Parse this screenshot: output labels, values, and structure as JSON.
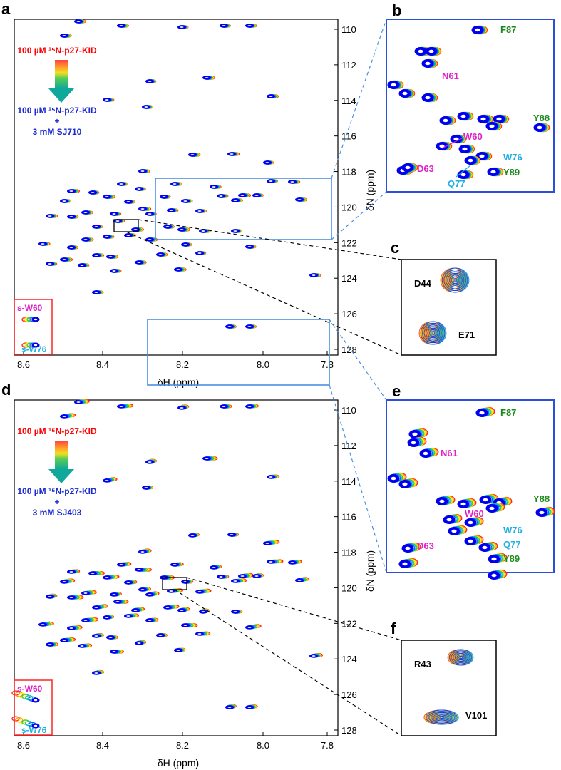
{
  "figure": {
    "top": {
      "panel_main": "a",
      "panel_zoom": "b",
      "panel_inset": "c",
      "legend": {
        "start": "100 µM ¹⁵N-p27-KID",
        "end_line1": "100 µM ¹⁵N-p27-KID",
        "end_plus": "+",
        "end_line2": "3 mM SJ710"
      },
      "side_peaks": [
        "s-W60",
        "s-W76"
      ],
      "zoom_peaks": [
        {
          "label": "F87",
          "color": "#1a8a1a"
        },
        {
          "label": "N61",
          "color": "#e020c8"
        },
        {
          "label": "Y88",
          "color": "#1a8a1a"
        },
        {
          "label": "W60",
          "color": "#e020c8"
        },
        {
          "label": "W76",
          "color": "#20b0e0"
        },
        {
          "label": "D63",
          "color": "#e020c8"
        },
        {
          "label": "Y89",
          "color": "#1a8a1a"
        },
        {
          "label": "Q77",
          "color": "#20b0e0"
        }
      ],
      "inset_peaks": [
        "D44",
        "E71"
      ]
    },
    "bottom": {
      "panel_main": "d",
      "panel_zoom": "e",
      "panel_inset": "f",
      "legend": {
        "start": "100 µM ¹⁵N-p27-KID",
        "end_line1": "100 µM ¹⁵N-p27-KID",
        "end_plus": "+",
        "end_line2": "3 mM SJ403"
      },
      "side_peaks": [
        "s-W60",
        "s-W76"
      ],
      "zoom_peaks": [
        {
          "label": "F87",
          "color": "#1a8a1a"
        },
        {
          "label": "N61",
          "color": "#e020c8"
        },
        {
          "label": "Y88",
          "color": "#1a8a1a"
        },
        {
          "label": "W60",
          "color": "#e020c8"
        },
        {
          "label": "W76",
          "color": "#20b0e0"
        },
        {
          "label": "D63",
          "color": "#e020c8"
        },
        {
          "label": "Q77",
          "color": "#20b0e0"
        },
        {
          "label": "Y89",
          "color": "#1a8a1a"
        }
      ],
      "inset_peaks": [
        "R43",
        "V101"
      ]
    },
    "axes": {
      "x_label": "δH (ppm)",
      "y_label": "δN (ppm)",
      "x_ticks": [
        "8.6",
        "8.4",
        "8.2",
        "8.0",
        "7.8"
      ],
      "y_ticks": [
        "110",
        "112",
        "114",
        "116",
        "118",
        "120",
        "122",
        "124",
        "126",
        "128"
      ]
    },
    "colors": {
      "final": "#0000ee",
      "titration_gradient": [
        "#ff2020",
        "#ff9900",
        "#ffee00",
        "#33cc33",
        "#00bcd4",
        "#1565ff"
      ],
      "zoom_box": "#4a8fe0",
      "side_box": "#ff3030",
      "legend_start": "#ff0000",
      "legend_end": "#1a2ad0"
    }
  }
}
